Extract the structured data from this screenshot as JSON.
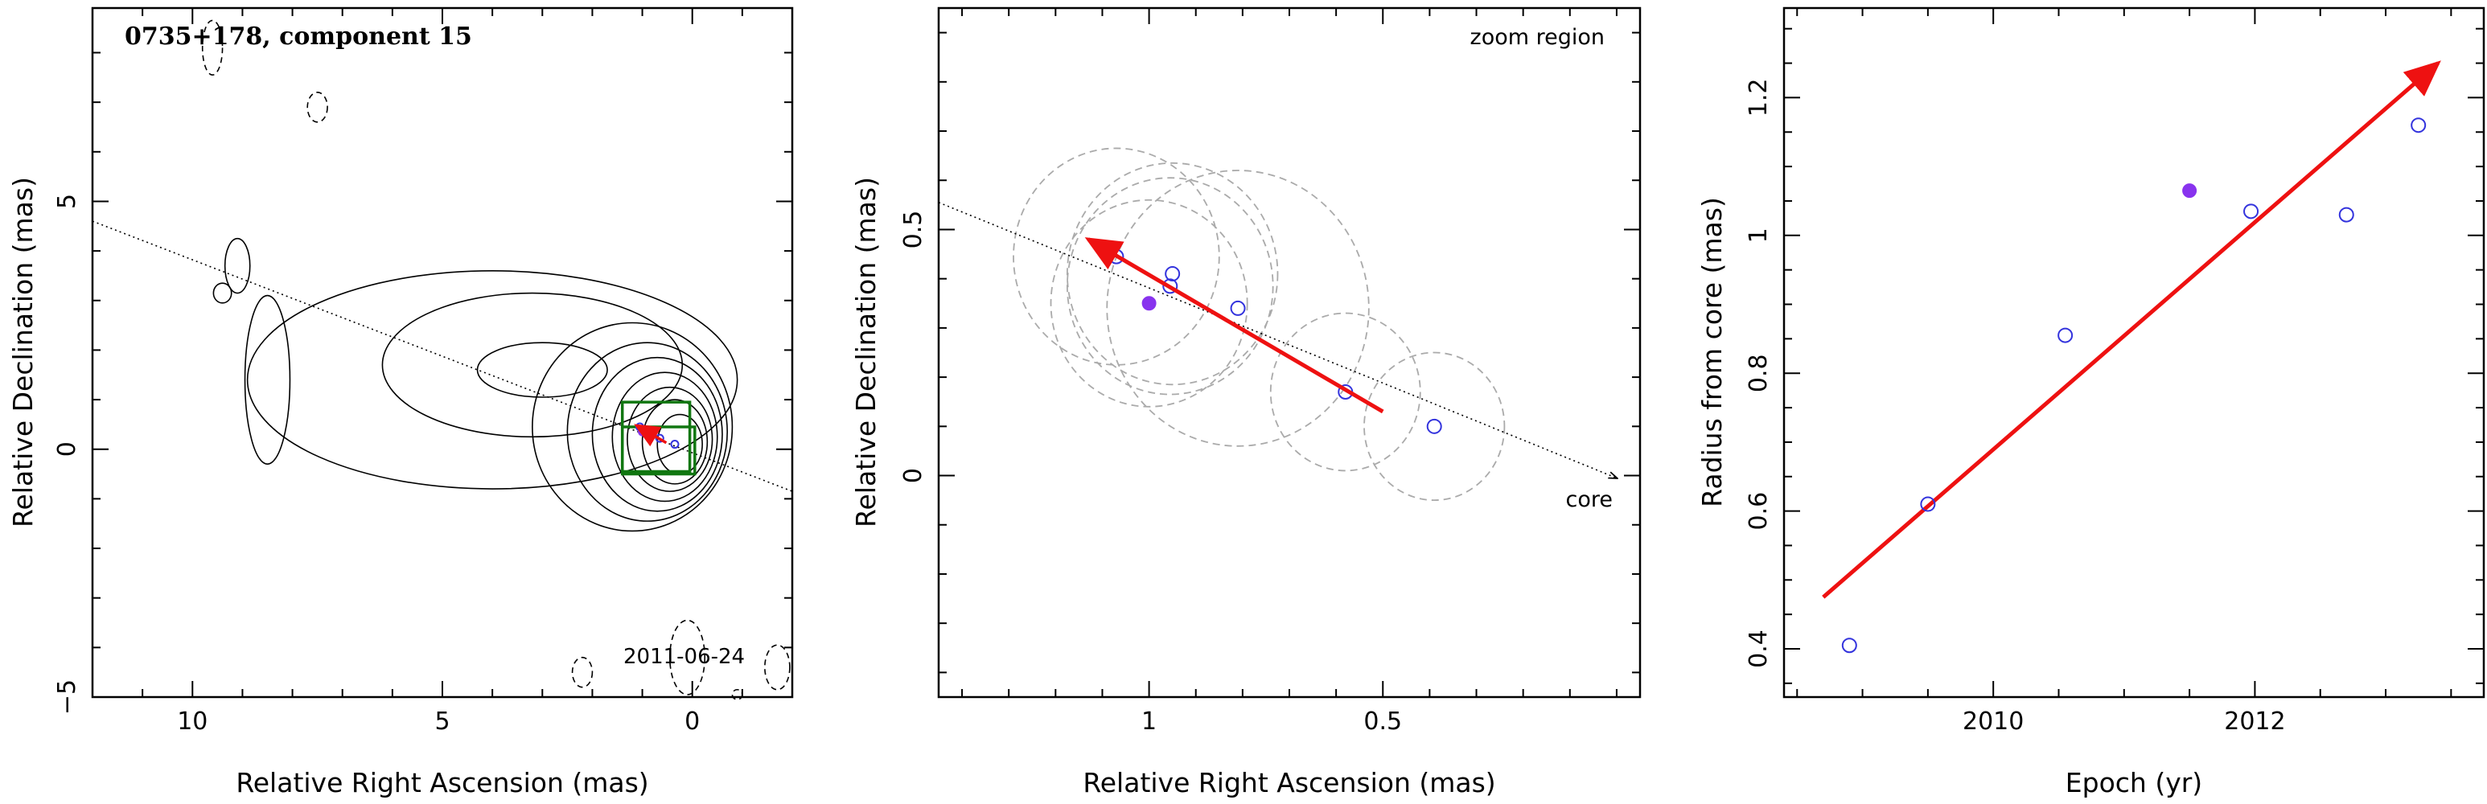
{
  "colors": {
    "axis": "#000000",
    "arrow": "#ee1111",
    "point_open": "#3333dd",
    "point_filled": "#8833ee",
    "box": "#117711",
    "circle": "#aaaaaa"
  },
  "chart_data": [
    {
      "type": "scatter",
      "panel": "contour-map",
      "title": "0735+178, component 15",
      "annotation": "2011-06-24",
      "xlabel": "Relative Right Ascension (mas)",
      "ylabel": "Relative Declination (mas)",
      "xlim": [
        12,
        -2
      ],
      "ylim": [
        -5,
        8.9
      ],
      "xticks": [
        10,
        5,
        0
      ],
      "yticks": [
        -5,
        0,
        5
      ],
      "jet_axis": {
        "x": [
          12,
          -2
        ],
        "y": [
          4.6,
          -0.85
        ]
      },
      "contours": [
        {
          "cx": 0.25,
          "cy": 0.1,
          "rx": 0.45,
          "ry": 0.6
        },
        {
          "cx": 0.35,
          "cy": 0.15,
          "rx": 0.65,
          "ry": 0.85
        },
        {
          "cx": 0.45,
          "cy": 0.2,
          "rx": 0.85,
          "ry": 1.05
        },
        {
          "cx": 0.55,
          "cy": 0.25,
          "rx": 1.05,
          "ry": 1.3
        },
        {
          "cx": 0.7,
          "cy": 0.3,
          "rx": 1.3,
          "ry": 1.55
        },
        {
          "cx": 0.9,
          "cy": 0.35,
          "rx": 1.6,
          "ry": 1.8
        },
        {
          "cx": 1.2,
          "cy": 0.45,
          "rx": 2.0,
          "ry": 2.1
        }
      ],
      "blobs": [
        {
          "cx": 3.0,
          "cy": 1.6,
          "rx": 1.3,
          "ry": 0.55
        },
        {
          "cx": 3.2,
          "cy": 1.7,
          "rx": 3.0,
          "ry": 1.45
        },
        {
          "cx": 4.0,
          "cy": 1.4,
          "rx": 4.9,
          "ry": 2.2
        },
        {
          "cx": 8.5,
          "cy": 1.4,
          "rx": 0.45,
          "ry": 1.7
        },
        {
          "cx": 9.1,
          "cy": 3.7,
          "rx": 0.25,
          "ry": 0.55
        },
        {
          "cx": 9.4,
          "cy": 3.15,
          "rx": 0.18,
          "ry": 0.2
        }
      ],
      "negative_contours": [
        {
          "cx": 9.6,
          "cy": 8.1,
          "rx": 0.2,
          "ry": 0.55
        },
        {
          "cx": 7.5,
          "cy": 6.9,
          "rx": 0.2,
          "ry": 0.3
        },
        {
          "cx": 2.2,
          "cy": -4.5,
          "rx": 0.2,
          "ry": 0.3
        },
        {
          "cx": 0.1,
          "cy": -4.2,
          "rx": 0.35,
          "ry": 0.75
        },
        {
          "cx": -1.7,
          "cy": -4.4,
          "rx": 0.25,
          "ry": 0.45
        },
        {
          "cx": -0.9,
          "cy": -4.95,
          "rx": 0.1,
          "ry": 0.1
        }
      ],
      "zoom_boxes": [
        {
          "x": [
            1.4,
            0.05
          ],
          "y": [
            -0.45,
            0.95
          ]
        },
        {
          "x": [
            1.4,
            -0.05
          ],
          "y": [
            -0.5,
            0.45
          ]
        }
      ],
      "points": [
        {
          "x": 1.05,
          "y": 0.45,
          "filled": false
        },
        {
          "x": 0.9,
          "y": 0.38,
          "filled": false
        },
        {
          "x": 0.65,
          "y": 0.22,
          "filled": false
        },
        {
          "x": 0.35,
          "y": 0.1,
          "filled": false
        },
        {
          "x": 1.0,
          "y": 0.35,
          "filled": true
        }
      ],
      "arrow": {
        "x": [
          0.52,
          1.12
        ],
        "y": [
          0.13,
          0.48
        ]
      }
    },
    {
      "type": "scatter",
      "panel": "zoom-region",
      "annotation": "zoom region",
      "core_label": "core",
      "xlabel": "Relative Right Ascension (mas)",
      "ylabel": "Relative Declination (mas)",
      "xlim": [
        1.45,
        -0.05
      ],
      "ylim": [
        -0.45,
        0.95
      ],
      "xticks": [
        1,
        0.5
      ],
      "yticks": [
        0,
        0.5
      ],
      "jet_axis": {
        "x": [
          1.45,
          0.0
        ],
        "y": [
          0.555,
          -0.005
        ]
      },
      "points": [
        {
          "x": 1.07,
          "y": 0.445,
          "filled": false
        },
        {
          "x": 0.95,
          "y": 0.41,
          "filled": false
        },
        {
          "x": 0.955,
          "y": 0.385,
          "filled": false
        },
        {
          "x": 0.81,
          "y": 0.34,
          "filled": false
        },
        {
          "x": 0.58,
          "y": 0.17,
          "filled": false
        },
        {
          "x": 0.39,
          "y": 0.1,
          "filled": false
        },
        {
          "x": 1.0,
          "y": 0.35,
          "filled": true
        }
      ],
      "uncertainty_circles": [
        {
          "x": 1.07,
          "y": 0.445,
          "r": 0.22
        },
        {
          "x": 0.95,
          "y": 0.41,
          "r": 0.225
        },
        {
          "x": 0.955,
          "y": 0.385,
          "r": 0.22
        },
        {
          "x": 0.81,
          "y": 0.34,
          "r": 0.28
        },
        {
          "x": 0.58,
          "y": 0.17,
          "r": 0.16
        },
        {
          "x": 0.39,
          "y": 0.1,
          "r": 0.15
        },
        {
          "x": 1.0,
          "y": 0.35,
          "r": 0.21
        }
      ],
      "arrow": {
        "x": [
          0.5,
          1.13
        ],
        "y": [
          0.13,
          0.48
        ]
      }
    },
    {
      "type": "scatter",
      "panel": "radius-vs-epoch",
      "xlabel": "Epoch (yr)",
      "ylabel": "Radius from core (mas)",
      "xlim": [
        2008.4,
        2013.75
      ],
      "ylim": [
        0.33,
        1.33
      ],
      "xticks": [
        2010,
        2012
      ],
      "yticks": [
        0.4,
        0.6,
        0.8,
        1,
        1.2
      ],
      "points": [
        {
          "x": 2008.9,
          "y": 0.405,
          "filled": false
        },
        {
          "x": 2009.5,
          "y": 0.61,
          "filled": false
        },
        {
          "x": 2010.55,
          "y": 0.855,
          "filled": false
        },
        {
          "x": 2011.97,
          "y": 1.035,
          "filled": false
        },
        {
          "x": 2012.7,
          "y": 1.03,
          "filled": false
        },
        {
          "x": 2013.25,
          "y": 1.16,
          "filled": false
        },
        {
          "x": 2011.5,
          "y": 1.065,
          "filled": true
        }
      ],
      "fit_arrow": {
        "x": [
          2008.7,
          2013.4
        ],
        "y": [
          0.475,
          1.25
        ]
      }
    }
  ]
}
